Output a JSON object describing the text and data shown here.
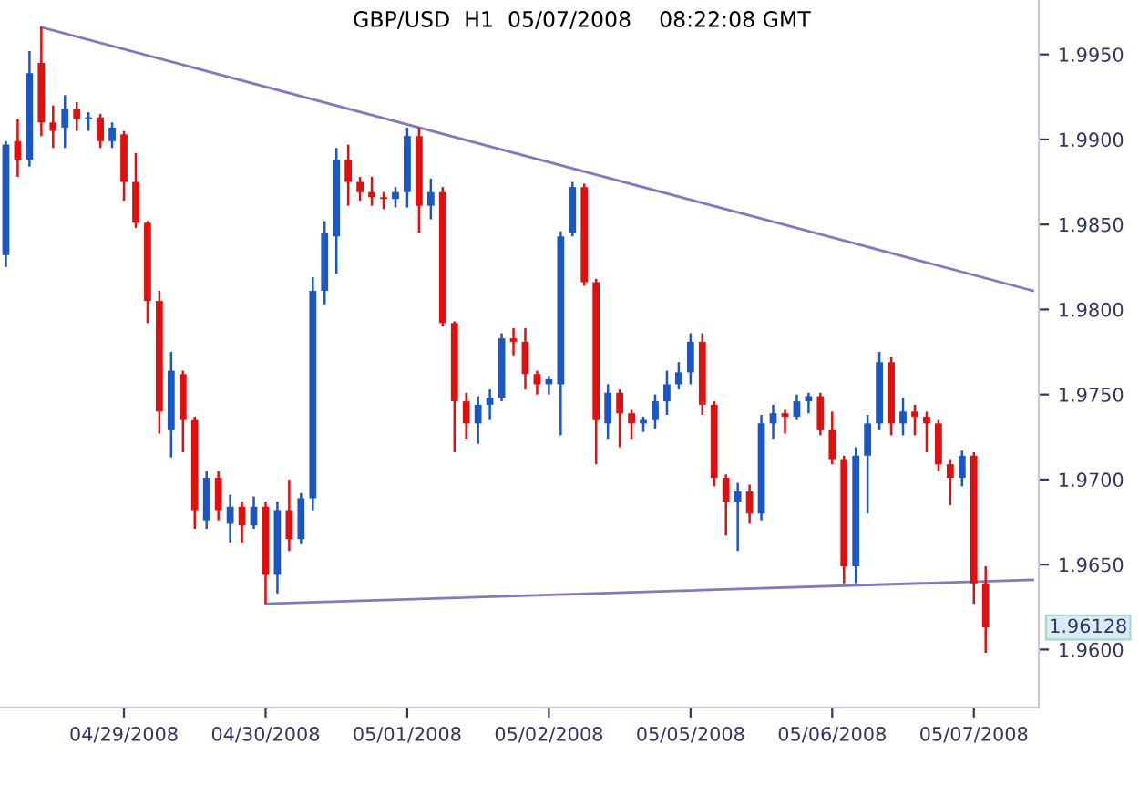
{
  "chart_data": {
    "type": "candlestick",
    "title": "GBP/USD  H1  05/07/2008    08:22:08 GMT",
    "categories": [
      null,
      null,
      null,
      null,
      null,
      null,
      null,
      null,
      null,
      null,
      "04/29/2008",
      null,
      null,
      null,
      null,
      null,
      null,
      null,
      null,
      null,
      null,
      null,
      "04/30/2008",
      null,
      null,
      null,
      null,
      null,
      null,
      null,
      null,
      null,
      null,
      null,
      "05/01/2008",
      null,
      null,
      null,
      null,
      null,
      null,
      null,
      null,
      null,
      null,
      null,
      "05/02/2008",
      null,
      null,
      null,
      null,
      null,
      null,
      null,
      null,
      null,
      null,
      null,
      "05/05/2008",
      null,
      null,
      null,
      null,
      null,
      null,
      null,
      null,
      null,
      null,
      null,
      "05/06/2008",
      null,
      null,
      null,
      null,
      null,
      null,
      null,
      null,
      null,
      null,
      null,
      "05/07/2008",
      null,
      null,
      null,
      null,
      null
    ],
    "ohlc": [
      [
        1.9832,
        1.9899,
        1.9825,
        1.9897
      ],
      [
        1.9899,
        1.9912,
        1.9878,
        1.9888
      ],
      [
        1.9888,
        1.9952,
        1.9884,
        1.9939
      ],
      [
        1.9945,
        1.9966,
        1.9902,
        1.991
      ],
      [
        1.991,
        1.992,
        1.9895,
        1.9905
      ],
      [
        1.9907,
        1.9926,
        1.9895,
        1.9918
      ],
      [
        1.9918,
        1.9922,
        1.9905,
        1.9912
      ],
      [
        1.9912,
        1.9916,
        1.9905,
        1.9913
      ],
      [
        1.9913,
        1.9915,
        1.9895,
        1.9899
      ],
      [
        1.9899,
        1.991,
        1.9895,
        1.9907
      ],
      [
        1.9903,
        1.9905,
        1.9864,
        1.9875
      ],
      [
        1.9875,
        1.9892,
        1.9848,
        1.9851
      ],
      [
        1.9851,
        1.9852,
        1.9792,
        1.9805
      ],
      [
        1.9805,
        1.9811,
        1.9727,
        1.974
      ],
      [
        1.9729,
        1.9775,
        1.9713,
        1.9764
      ],
      [
        1.9762,
        1.9764,
        1.9716,
        1.9735
      ],
      [
        1.9735,
        1.9737,
        1.9671,
        1.9682
      ],
      [
        1.9676,
        1.9705,
        1.9671,
        1.9701
      ],
      [
        1.9701,
        1.9705,
        1.9676,
        1.9682
      ],
      [
        1.9674,
        1.9691,
        1.9663,
        1.9684
      ],
      [
        1.9684,
        1.9687,
        1.9663,
        1.9673
      ],
      [
        1.9673,
        1.969,
        1.9671,
        1.9684
      ],
      [
        1.9684,
        1.9687,
        1.9627,
        1.9644
      ],
      [
        1.9644,
        1.9687,
        1.9633,
        1.9682
      ],
      [
        1.9682,
        1.97,
        1.9658,
        1.9665
      ],
      [
        1.9665,
        1.9692,
        1.9662,
        1.9689
      ],
      [
        1.9689,
        1.9819,
        1.9682,
        1.9811
      ],
      [
        1.9811,
        1.9852,
        1.9803,
        1.9845
      ],
      [
        1.9843,
        1.9895,
        1.9821,
        1.9888
      ],
      [
        1.9888,
        1.9897,
        1.9861,
        1.9875
      ],
      [
        1.9875,
        1.9878,
        1.9864,
        1.9869
      ],
      [
        1.9869,
        1.9878,
        1.9861,
        1.9866
      ],
      [
        1.9866,
        1.9869,
        1.9859,
        1.9865
      ],
      [
        1.9865,
        1.9872,
        1.986,
        1.9869
      ],
      [
        1.9869,
        1.9907,
        1.986,
        1.9902
      ],
      [
        1.9902,
        1.9907,
        1.9845,
        1.9861
      ],
      [
        1.9861,
        1.9877,
        1.9853,
        1.9869
      ],
      [
        1.9869,
        1.9872,
        1.979,
        1.9792
      ],
      [
        1.9792,
        1.9793,
        1.9716,
        1.9746
      ],
      [
        1.9746,
        1.9751,
        1.9724,
        1.9733
      ],
      [
        1.9733,
        1.9749,
        1.9721,
        1.9744
      ],
      [
        1.9744,
        1.9753,
        1.9735,
        1.9748
      ],
      [
        1.9748,
        1.9786,
        1.9746,
        1.9783
      ],
      [
        1.9783,
        1.9789,
        1.9773,
        1.9781
      ],
      [
        1.9781,
        1.9789,
        1.9753,
        1.9762
      ],
      [
        1.9762,
        1.9764,
        1.975,
        1.9756
      ],
      [
        1.9756,
        1.9761,
        1.975,
        1.9759
      ],
      [
        1.9756,
        1.9846,
        1.9726,
        1.9843
      ],
      [
        1.9845,
        1.9875,
        1.9843,
        1.9872
      ],
      [
        1.9872,
        1.9874,
        1.9814,
        1.9816
      ],
      [
        1.9816,
        1.9818,
        1.9709,
        1.9735
      ],
      [
        1.9733,
        1.9756,
        1.9724,
        1.9751
      ],
      [
        1.9751,
        1.9753,
        1.9719,
        1.9739
      ],
      [
        1.9739,
        1.9741,
        1.9724,
        1.9733
      ],
      [
        1.9733,
        1.9737,
        1.9728,
        1.9735
      ],
      [
        1.9735,
        1.975,
        1.973,
        1.9746
      ],
      [
        1.9746,
        1.9764,
        1.9738,
        1.9756
      ],
      [
        1.9756,
        1.9769,
        1.9753,
        1.9763
      ],
      [
        1.9763,
        1.9786,
        1.9756,
        1.9781
      ],
      [
        1.9781,
        1.9786,
        1.9738,
        1.9744
      ],
      [
        1.9744,
        1.9746,
        1.9696,
        1.9701
      ],
      [
        1.9701,
        1.9703,
        1.9667,
        1.9687
      ],
      [
        1.9687,
        1.9698,
        1.9658,
        1.9693
      ],
      [
        1.9693,
        1.9697,
        1.9674,
        1.968
      ],
      [
        1.968,
        1.9738,
        1.9676,
        1.9733
      ],
      [
        1.9733,
        1.9744,
        1.9724,
        1.9739
      ],
      [
        1.9739,
        1.9741,
        1.9727,
        1.9737
      ],
      [
        1.9737,
        1.975,
        1.9735,
        1.9746
      ],
      [
        1.9746,
        1.9751,
        1.9739,
        1.9749
      ],
      [
        1.9749,
        1.9751,
        1.9726,
        1.9729
      ],
      [
        1.9729,
        1.974,
        1.9709,
        1.9712
      ],
      [
        1.9712,
        1.9714,
        1.9639,
        1.9649
      ],
      [
        1.9649,
        1.9719,
        1.9639,
        1.9714
      ],
      [
        1.9714,
        1.9738,
        1.968,
        1.9733
      ],
      [
        1.9733,
        1.9775,
        1.9729,
        1.9769
      ],
      [
        1.9769,
        1.9772,
        1.9726,
        1.9733
      ],
      [
        1.9733,
        1.9748,
        1.9726,
        1.974
      ],
      [
        1.974,
        1.9744,
        1.9726,
        1.9737
      ],
      [
        1.9737,
        1.974,
        1.9716,
        1.9733
      ],
      [
        1.9733,
        1.9735,
        1.9705,
        1.9709
      ],
      [
        1.9709,
        1.9712,
        1.9685,
        1.9701
      ],
      [
        1.9701,
        1.9717,
        1.9696,
        1.9714
      ],
      [
        1.9714,
        1.9716,
        1.9627,
        1.9639
      ],
      [
        1.9639,
        1.9649,
        1.9598,
        1.9613
      ],
      null,
      null,
      null,
      null
    ],
    "colors": [
      "#1a56c4",
      "#e01010",
      "#1a56c4",
      "#e01010",
      "#e01010",
      "#1a56c4",
      "#e01010",
      "#1a56c4",
      "#e01010",
      "#1a56c4",
      "#e01010",
      "#e01010",
      "#e01010",
      "#e01010",
      "#1a56c4",
      "#e01010",
      "#e01010",
      "#1a56c4",
      "#e01010",
      "#1a56c4",
      "#e01010",
      "#1a56c4",
      "#e01010",
      "#1a56c4",
      "#e01010",
      "#1a56c4",
      "#1a56c4",
      "#1a56c4",
      "#1a56c4",
      "#e01010",
      "#e01010",
      "#e01010",
      "#e01010",
      "#1a56c4",
      "#1a56c4",
      "#e01010",
      "#1a56c4",
      "#e01010",
      "#e01010",
      "#e01010",
      "#1a56c4",
      "#1a56c4",
      "#1a56c4",
      "#e01010",
      "#e01010",
      "#e01010",
      "#1a56c4",
      "#1a56c4",
      "#1a56c4",
      "#e01010",
      "#e01010",
      "#1a56c4",
      "#e01010",
      "#e01010",
      "#1a56c4",
      "#1a56c4",
      "#1a56c4",
      "#1a56c4",
      "#1a56c4",
      "#e01010",
      "#e01010",
      "#e01010",
      "#1a56c4",
      "#e01010",
      "#1a56c4",
      "#1a56c4",
      "#e01010",
      "#1a56c4",
      "#1a56c4",
      "#e01010",
      "#e01010",
      "#e01010",
      "#1a56c4",
      "#1a56c4",
      "#1a56c4",
      "#e01010",
      "#1a56c4",
      "#e01010",
      "#e01010",
      "#e01010",
      "#e01010",
      "#1a56c4",
      "#e01010",
      "#e01010",
      null,
      null,
      null,
      null
    ],
    "series": [
      {
        "type": "line",
        "color": "#7c7cc0",
        "values": [
          null,
          null,
          null,
          1.9966,
          null,
          null,
          null,
          null,
          null,
          null,
          null,
          null,
          null,
          null,
          null,
          null,
          null,
          null,
          null,
          null,
          null,
          null,
          null,
          null,
          null,
          null,
          null,
          null,
          null,
          null,
          null,
          null,
          null,
          null,
          null,
          null,
          null,
          null,
          null,
          null,
          null,
          null,
          null,
          null,
          null,
          null,
          null,
          null,
          null,
          null,
          null,
          null,
          null,
          null,
          null,
          null,
          null,
          null,
          null,
          null,
          null,
          null,
          null,
          null,
          null,
          null,
          null,
          null,
          null,
          null,
          null,
          null,
          null,
          null,
          null,
          null,
          null,
          null,
          null,
          null,
          null,
          null,
          null,
          null,
          null,
          null,
          null,
          1.9811
        ]
      },
      {
        "type": "line",
        "color": "#7c7cc0",
        "values": [
          null,
          null,
          null,
          null,
          null,
          null,
          null,
          null,
          null,
          null,
          null,
          null,
          null,
          null,
          null,
          null,
          null,
          null,
          null,
          null,
          null,
          null,
          1.9627,
          null,
          null,
          null,
          null,
          null,
          null,
          null,
          null,
          null,
          null,
          null,
          null,
          null,
          null,
          null,
          null,
          null,
          null,
          null,
          null,
          null,
          null,
          null,
          null,
          null,
          null,
          null,
          null,
          null,
          null,
          null,
          null,
          null,
          null,
          null,
          null,
          null,
          null,
          null,
          null,
          null,
          null,
          null,
          null,
          null,
          null,
          null,
          null,
          null,
          null,
          null,
          null,
          null,
          null,
          null,
          null,
          null,
          null,
          null,
          null,
          null,
          null,
          null,
          null,
          1.9641
        ]
      }
    ],
    "ylim": [
      1.9566,
      1.9982
    ],
    "yticks": [
      {
        "value": 1.96,
        "label": "1.9600"
      },
      {
        "value": 1.965,
        "label": "1.9650"
      },
      {
        "value": 1.97,
        "label": "1.9700"
      },
      {
        "value": 1.975,
        "label": "1.9750"
      },
      {
        "value": 1.98,
        "label": "1.9800"
      },
      {
        "value": 1.985,
        "label": "1.9850"
      },
      {
        "value": 1.99,
        "label": "1.9900"
      },
      {
        "value": 1.995,
        "label": "1.9950"
      }
    ],
    "annotations": [
      "1.96128"
    ]
  }
}
